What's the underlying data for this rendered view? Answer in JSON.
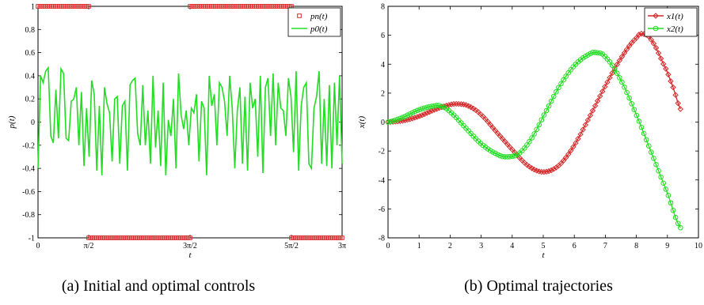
{
  "captions": {
    "a": "(a) Initial and optimal controls",
    "b": "(b) Optimal trajectories"
  },
  "chart_data": [
    {
      "type": "line",
      "xlabel": "t",
      "ylabel": "p(t)",
      "xlim": [
        0,
        9.42478
      ],
      "ylim": [
        -1,
        1
      ],
      "xticks": [
        0,
        1.5708,
        4.7124,
        7.854,
        9.42478
      ],
      "xtick_labels": [
        "0",
        "π/2",
        "3π/2",
        "5π/2",
        "3π"
      ],
      "yticks": [
        -1,
        -0.8,
        -0.6,
        -0.4,
        -0.2,
        0,
        0.2,
        0.4,
        0.6,
        0.8,
        1
      ],
      "ytick_labels": [
        "-1",
        "-0.8",
        "-0.6",
        "-0.4",
        "-0.2",
        "0",
        "0.2",
        "0.4",
        "0.6",
        "0.8",
        "1"
      ],
      "legend_position": "top-right",
      "grid": false,
      "colors": {
        "pn": "#d62728",
        "p0": "#22dd22"
      },
      "series": [
        {
          "name": "p_n(t)",
          "legend_label": "pn(t)",
          "marker": "square",
          "segments": [
            {
              "t_start": 0,
              "t_end": 1.5708,
              "value": 1
            },
            {
              "t_start": 1.5708,
              "t_end": 4.7124,
              "value": -1
            },
            {
              "t_start": 4.7124,
              "t_end": 7.854,
              "value": 1
            },
            {
              "t_start": 7.854,
              "t_end": 9.42478,
              "value": -1
            }
          ]
        },
        {
          "name": "p_0(t)",
          "legend_label": "p0(t)",
          "values": [
            -0.4,
            0.4,
            0.34,
            0.44,
            0.47,
            -0.12,
            -0.18,
            0.28,
            -0.14,
            0.46,
            0.42,
            -0.14,
            -0.16,
            0.18,
            0.2,
            0.3,
            -0.2,
            0.26,
            -0.38,
            0.12,
            -0.3,
            0.36,
            0.24,
            -0.42,
            0.14,
            -0.46,
            0.3,
            0.16,
            0.08,
            -0.34,
            0.2,
            0.22,
            -0.36,
            0.14,
            0.18,
            -0.42,
            0.32,
            0.36,
            0.38,
            -0.1,
            -0.2,
            0.32,
            -0.2,
            0.1,
            -0.36,
            0.4,
            -0.22,
            0.1,
            -0.38,
            0.34,
            -0.46,
            0.02,
            -0.12,
            0.2,
            -0.4,
            0.42,
            0.06,
            -0.06,
            0.1,
            -0.2,
            0.12,
            0.08,
            0.24,
            -0.34,
            0.18,
            0.12,
            -0.46,
            0.4,
            0.14,
            0.24,
            -0.2,
            0.34,
            0.3,
            0.18,
            -0.12,
            0.4,
            0.12,
            -0.4,
            0.1,
            0.3,
            -0.36,
            0.22,
            -0.42,
            0.34,
            0.12,
            0.2,
            -0.3,
            0.4,
            -0.44,
            0.3,
            0.38,
            -0.12,
            0.42,
            -0.2,
            0.34,
            0.12,
            0.1,
            -0.12,
            0.38,
            0.22,
            -0.26,
            0.44,
            -0.42,
            0.14,
            0.3,
            0.34,
            -0.36,
            -0.4,
            0.12,
            0.22,
            0.44,
            -0.36,
            0.2,
            -0.38,
            0.32,
            -0.4,
            0.34,
            -0.2,
            0.4,
            -0.36
          ]
        }
      ]
    },
    {
      "type": "line",
      "xlabel": "t",
      "ylabel": "x(t)",
      "xlim": [
        0,
        10
      ],
      "ylim": [
        -8,
        8
      ],
      "xticks": [
        0,
        1,
        2,
        3,
        4,
        5,
        6,
        7,
        8,
        9,
        10
      ],
      "xtick_labels": [
        "0",
        "1",
        "2",
        "3",
        "4",
        "5",
        "6",
        "7",
        "8",
        "9",
        "10"
      ],
      "yticks": [
        -8,
        -6,
        -4,
        -2,
        0,
        2,
        4,
        6,
        8
      ],
      "ytick_labels": [
        "-8",
        "-6",
        "-4",
        "-2",
        "0",
        "2",
        "4",
        "6",
        "8"
      ],
      "legend_position": "top-right",
      "grid": false,
      "colors": {
        "x1": "#d62728",
        "x2": "#22dd22"
      },
      "series": [
        {
          "name": "x_1(t)",
          "legend_label": "x1(t)",
          "marker": "diamond",
          "points": [
            [
              0,
              0
            ],
            [
              0.5,
              0.1
            ],
            [
              1.0,
              0.4
            ],
            [
              1.5,
              0.85
            ],
            [
              2.0,
              1.2
            ],
            [
              2.3,
              1.25
            ],
            [
              2.6,
              1.1
            ],
            [
              3.0,
              0.5
            ],
            [
              3.5,
              -0.7
            ],
            [
              4.0,
              -1.9
            ],
            [
              4.5,
              -3.0
            ],
            [
              5.0,
              -3.45
            ],
            [
              5.5,
              -3.0
            ],
            [
              6.0,
              -1.6
            ],
            [
              6.5,
              0.4
            ],
            [
              7.0,
              2.5
            ],
            [
              7.5,
              4.4
            ],
            [
              8.0,
              5.8
            ],
            [
              8.2,
              6.1
            ],
            [
              8.5,
              5.6
            ],
            [
              9.0,
              3.5
            ],
            [
              9.2,
              2.3
            ],
            [
              9.42,
              0.9
            ]
          ]
        },
        {
          "name": "x_2(t)",
          "legend_label": "x2(t)",
          "marker": "circle",
          "points": [
            [
              0,
              0
            ],
            [
              0.5,
              0.35
            ],
            [
              1.0,
              0.85
            ],
            [
              1.5,
              1.12
            ],
            [
              1.7,
              1.1
            ],
            [
              2.0,
              0.7
            ],
            [
              2.5,
              -0.4
            ],
            [
              3.0,
              -1.5
            ],
            [
              3.5,
              -2.2
            ],
            [
              3.8,
              -2.4
            ],
            [
              4.2,
              -2.2
            ],
            [
              4.6,
              -1.2
            ],
            [
              5.0,
              0.4
            ],
            [
              5.5,
              2.4
            ],
            [
              6.0,
              3.9
            ],
            [
              6.5,
              4.7
            ],
            [
              6.7,
              4.8
            ],
            [
              7.0,
              4.5
            ],
            [
              7.5,
              2.9
            ],
            [
              8.0,
              0.5
            ],
            [
              8.5,
              -2.2
            ],
            [
              9.0,
              -4.9
            ],
            [
              9.42,
              -7.3
            ]
          ]
        }
      ]
    }
  ]
}
